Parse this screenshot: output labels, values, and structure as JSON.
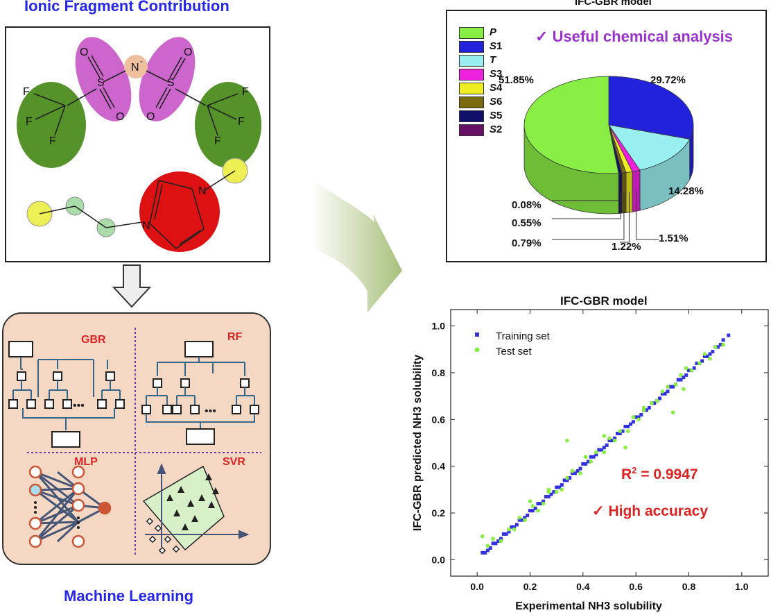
{
  "left": {
    "title": "Ionic Fragment Contribution",
    "bottom_title": "Machine Learning",
    "molecule": {
      "anion_n": "N",
      "anion_charge": "-",
      "s": "S",
      "o": "O",
      "f": "F",
      "ring_n": "N"
    },
    "models": {
      "gbr": "GBR",
      "rf": "RF",
      "mlp": "MLP",
      "svr": "SVR",
      "ellipsis": "•••"
    }
  },
  "pie_chart": {
    "title": "IFC-GBR model",
    "annotation_check": "✓",
    "annotation": "Useful chemical analysis",
    "legend": [
      {
        "label": "P",
        "color": "#88ee44"
      },
      {
        "label": "S1",
        "color": "#2222dd"
      },
      {
        "label": "T",
        "color": "#99f0f0"
      },
      {
        "label": "S3",
        "color": "#ee22dd"
      },
      {
        "label": "S4",
        "color": "#eeee22"
      },
      {
        "label": "S6",
        "color": "#7a6a10"
      },
      {
        "label": "S5",
        "color": "#10106a"
      },
      {
        "label": "S2",
        "color": "#661166"
      }
    ]
  },
  "chart_data": [
    {
      "type": "pie",
      "title": "IFC-GBR model",
      "categories": [
        "P",
        "S1",
        "T",
        "S3",
        "S4",
        "S6",
        "S5",
        "S2"
      ],
      "values": [
        51.85,
        29.72,
        14.28,
        1.51,
        1.22,
        0.79,
        0.55,
        0.08
      ],
      "labels": [
        "51.85%",
        "29.72%",
        "14.28%",
        "1.51%",
        "1.22%",
        "0.79%",
        "0.55%",
        "0.08%"
      ],
      "colors": [
        "#88ee44",
        "#2222dd",
        "#99f0f0",
        "#ee22dd",
        "#eeee22",
        "#7a6a10",
        "#10106a",
        "#661166"
      ]
    },
    {
      "type": "scatter",
      "title": "IFC-GBR model",
      "xlabel": "Experimental NH3 solubility",
      "ylabel": "IFC-GBR predicted NH3 solubility",
      "xlim": [
        -0.1,
        1.1
      ],
      "ylim": [
        -0.07,
        1.07
      ],
      "xticks": [
        "0.0",
        "0.2",
        "0.4",
        "0.6",
        "0.8",
        "1.0"
      ],
      "yticks": [
        "0.0",
        "0.2",
        "0.4",
        "0.6",
        "0.8",
        "1.0"
      ],
      "series": [
        {
          "name": "Training set",
          "color": "#3333dd",
          "marker": "square",
          "x": [
            0.02,
            0.03,
            0.04,
            0.05,
            0.06,
            0.07,
            0.08,
            0.09,
            0.1,
            0.11,
            0.12,
            0.13,
            0.14,
            0.15,
            0.16,
            0.17,
            0.18,
            0.19,
            0.2,
            0.21,
            0.22,
            0.23,
            0.24,
            0.25,
            0.26,
            0.27,
            0.28,
            0.29,
            0.3,
            0.31,
            0.32,
            0.33,
            0.34,
            0.35,
            0.36,
            0.37,
            0.38,
            0.39,
            0.4,
            0.41,
            0.42,
            0.43,
            0.44,
            0.45,
            0.46,
            0.47,
            0.48,
            0.49,
            0.5,
            0.51,
            0.52,
            0.53,
            0.54,
            0.55,
            0.56,
            0.57,
            0.58,
            0.59,
            0.6,
            0.61,
            0.62,
            0.63,
            0.64,
            0.65,
            0.66,
            0.67,
            0.68,
            0.69,
            0.7,
            0.71,
            0.72,
            0.73,
            0.74,
            0.75,
            0.76,
            0.77,
            0.78,
            0.79,
            0.8,
            0.81,
            0.82,
            0.83,
            0.84,
            0.85,
            0.86,
            0.87,
            0.88,
            0.89,
            0.9,
            0.91,
            0.92,
            0.93,
            0.95
          ],
          "y": [
            0.03,
            0.03,
            0.04,
            0.05,
            0.07,
            0.07,
            0.08,
            0.09,
            0.11,
            0.11,
            0.12,
            0.14,
            0.14,
            0.15,
            0.17,
            0.17,
            0.18,
            0.19,
            0.21,
            0.21,
            0.22,
            0.24,
            0.24,
            0.25,
            0.27,
            0.27,
            0.28,
            0.29,
            0.31,
            0.31,
            0.32,
            0.34,
            0.34,
            0.35,
            0.37,
            0.37,
            0.38,
            0.39,
            0.41,
            0.41,
            0.42,
            0.44,
            0.44,
            0.45,
            0.47,
            0.47,
            0.48,
            0.49,
            0.51,
            0.51,
            0.52,
            0.54,
            0.54,
            0.55,
            0.57,
            0.57,
            0.58,
            0.59,
            0.61,
            0.61,
            0.62,
            0.64,
            0.64,
            0.65,
            0.67,
            0.67,
            0.68,
            0.69,
            0.71,
            0.71,
            0.72,
            0.74,
            0.74,
            0.75,
            0.77,
            0.77,
            0.78,
            0.79,
            0.81,
            0.81,
            0.82,
            0.84,
            0.84,
            0.85,
            0.87,
            0.87,
            0.88,
            0.89,
            0.91,
            0.91,
            0.92,
            0.94,
            0.96
          ]
        },
        {
          "name": "Test set",
          "color": "#88ee44",
          "marker": "circle",
          "x": [
            0.02,
            0.04,
            0.06,
            0.09,
            0.12,
            0.14,
            0.16,
            0.18,
            0.21,
            0.23,
            0.25,
            0.27,
            0.3,
            0.32,
            0.34,
            0.36,
            0.39,
            0.41,
            0.43,
            0.45,
            0.48,
            0.5,
            0.52,
            0.54,
            0.57,
            0.59,
            0.61,
            0.63,
            0.66,
            0.68,
            0.7,
            0.72,
            0.75,
            0.77,
            0.79,
            0.81,
            0.84,
            0.86,
            0.88,
            0.9,
            0.93,
            0.34,
            0.41,
            0.27,
            0.56,
            0.74,
            0.78,
            0.63,
            0.48,
            0.2
          ],
          "y": [
            0.1,
            0.06,
            0.09,
            0.08,
            0.13,
            0.13,
            0.18,
            0.17,
            0.23,
            0.21,
            0.24,
            0.29,
            0.29,
            0.3,
            0.35,
            0.38,
            0.37,
            0.44,
            0.42,
            0.46,
            0.46,
            0.52,
            0.51,
            0.55,
            0.55,
            0.61,
            0.6,
            0.64,
            0.67,
            0.68,
            0.72,
            0.74,
            0.75,
            0.79,
            0.82,
            0.81,
            0.84,
            0.88,
            0.86,
            0.91,
            0.92,
            0.51,
            0.44,
            0.3,
            0.48,
            0.63,
            0.73,
            0.65,
            0.53,
            0.25
          ]
        }
      ],
      "annotations": [
        "R² = 0.9947",
        "✓ High accuracy"
      ]
    }
  ],
  "scatter_chart": {
    "title": "IFC-GBR model",
    "xlabel": "Experimental NH3 solubility",
    "ylabel": "IFC-GBR predicted NH3 solubility",
    "r2_prefix": "R",
    "r2_sup": "2",
    "r2_value": " = 0.9947",
    "accuracy_check": "✓",
    "accuracy": "High accuracy",
    "legend_train": "Training set",
    "legend_test": "Test set"
  }
}
